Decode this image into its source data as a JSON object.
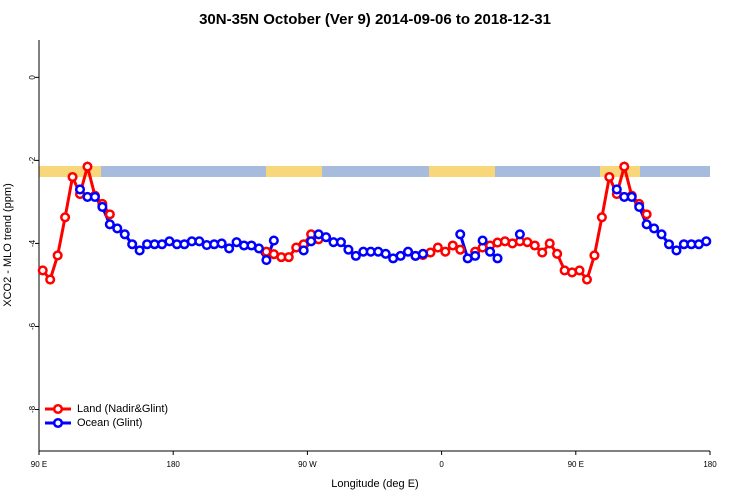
{
  "chart_data": {
    "type": "line",
    "title": "30N-35N October (Ver 9)   2014-09-06 to 2018-12-31",
    "x_label": "Longitude (deg E)",
    "y_label": "XCO2 - MLO trend (ppm)",
    "x": [
      92.5,
      97.5,
      102.5,
      107.5,
      112.5,
      117.5,
      122.5,
      127.5,
      132.5,
      137.5,
      142.5,
      147.5,
      152.5,
      157.5,
      162.5,
      167.5,
      172.5,
      177.5,
      182.5,
      187.5,
      192.5,
      197.5,
      202.5,
      207.5,
      212.5,
      217.5,
      222.5,
      227.5,
      232.5,
      237.5,
      242.5,
      247.5,
      252.5,
      257.5,
      262.5,
      267.5,
      272.5,
      277.5,
      282.5,
      287.5,
      292.5,
      297.5,
      302.5,
      307.5,
      312.5,
      317.5,
      322.5,
      327.5,
      332.5,
      337.5,
      342.5,
      347.5,
      352.5,
      357.5,
      362.5,
      367.5,
      372.5,
      377.5,
      382.5,
      387.5,
      392.5,
      397.5,
      402.5,
      407.5,
      412.5,
      417.5,
      422.5,
      427.5,
      432.5,
      437.5,
      442.5,
      447.5,
      452.5,
      457.5,
      462.5,
      467.5,
      472.5,
      477.5,
      482.5,
      487.5,
      492.5,
      497.5,
      502.5,
      507.5,
      512.5,
      517.5,
      522.5,
      527.5,
      532.5,
      537.5
    ],
    "series": [
      {
        "name": "Land (Nadir&Glint)",
        "color": "#ff0000",
        "values": [
          -4.65,
          -4.87,
          -4.29,
          -3.37,
          -2.4,
          -2.81,
          -2.15,
          -2.85,
          -3.05,
          -3.3,
          null,
          null,
          null,
          null,
          null,
          null,
          null,
          null,
          null,
          null,
          null,
          null,
          null,
          null,
          null,
          null,
          null,
          null,
          null,
          null,
          -4.2,
          -4.26,
          -4.33,
          -4.33,
          -4.1,
          -4.02,
          -3.78,
          -3.9,
          null,
          null,
          null,
          null,
          null,
          null,
          null,
          null,
          null,
          null,
          null,
          null,
          -4.3,
          -4.28,
          -4.22,
          -4.1,
          -4.2,
          -4.05,
          -4.15,
          null,
          -4.2,
          -4.1,
          -4.05,
          -3.98,
          -3.95,
          -4.0,
          -3.95,
          -3.97,
          -4.05,
          -4.22,
          -4.0,
          -4.25,
          -4.65,
          -4.7,
          -4.65,
          -4.87,
          -4.29,
          -3.37,
          -2.4,
          -2.81,
          -2.15,
          -2.85,
          -3.05,
          -3.3,
          null,
          null,
          null,
          null,
          null,
          null,
          null,
          null
        ]
      },
      {
        "name": "Ocean (Glint)",
        "color": "#0000ff",
        "values": [
          null,
          null,
          null,
          null,
          null,
          -2.7,
          -2.88,
          -2.88,
          -3.12,
          -3.54,
          -3.64,
          -3.78,
          -4.02,
          -4.17,
          -4.02,
          -4.02,
          -4.02,
          -3.95,
          -4.02,
          -4.02,
          -3.95,
          -3.95,
          -4.04,
          -4.02,
          -4.0,
          -4.12,
          -3.97,
          -4.05,
          -4.05,
          -4.12,
          -4.4,
          -3.93,
          null,
          null,
          null,
          -4.17,
          -3.95,
          -3.78,
          -3.85,
          -3.97,
          -3.97,
          -4.15,
          -4.3,
          -4.2,
          -4.2,
          -4.2,
          -4.25,
          -4.36,
          -4.3,
          -4.2,
          -4.3,
          -4.25,
          null,
          null,
          null,
          null,
          -3.78,
          -4.36,
          -4.3,
          -3.93,
          -4.2,
          -4.36,
          null,
          null,
          -3.78,
          null,
          null,
          null,
          null,
          null,
          null,
          null,
          null,
          null,
          null,
          null,
          null,
          -2.7,
          -2.88,
          -2.88,
          -3.12,
          -3.54,
          -3.64,
          -3.78,
          -4.02,
          -4.17,
          -4.02,
          -4.02,
          -4.02,
          -3.95
        ]
      }
    ],
    "xlim": [
      90,
      540
    ],
    "xticks": [
      {
        "value": 90,
        "label": "90 E"
      },
      180,
      {
        "value": 270,
        "label": "90 W"
      },
      {
        "value": 360,
        "label": "0"
      },
      {
        "value": 450,
        "label": "90 E"
      },
      {
        "value": 540,
        "label": "180"
      }
    ],
    "ylim": [
      -9,
      0.9
    ],
    "yticks": [
      -8,
      -6,
      -4,
      -2,
      0
    ],
    "legend": "bottomleft"
  }
}
